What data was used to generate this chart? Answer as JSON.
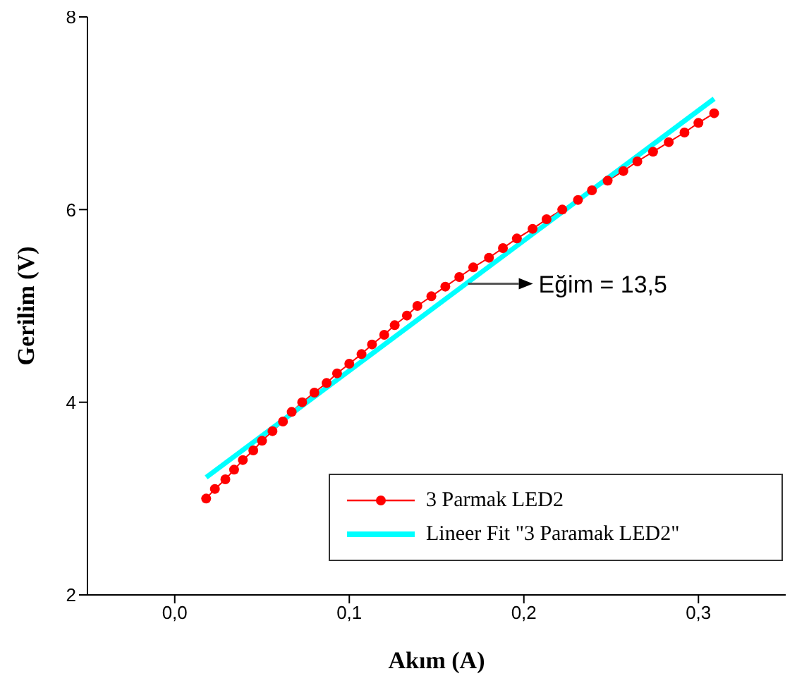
{
  "chart_data": {
    "type": "line",
    "xlabel": "Akım (A)",
    "ylabel": "Gerilim (V)",
    "xlim": [
      -0.05,
      0.35
    ],
    "ylim": [
      2,
      8
    ],
    "xticks": [
      {
        "value": 0,
        "label": "0,0"
      },
      {
        "value": 0.1,
        "label": "0,1"
      },
      {
        "value": 0.2,
        "label": "0,2"
      },
      {
        "value": 0.3,
        "label": "0,3"
      }
    ],
    "yticks": [
      2,
      4,
      6,
      8
    ],
    "legend": "bottom right",
    "annotations": [
      {
        "text": "Eğim = 13,5",
        "x": 0.168,
        "y": 5.23
      }
    ],
    "series": [
      {
        "name": "3 Parmak LED2",
        "color": "#ff0000",
        "marker": "circle",
        "line_style": "solid",
        "x": [
          0.018,
          0.023,
          0.029,
          0.034,
          0.039,
          0.045,
          0.05,
          0.056,
          0.062,
          0.067,
          0.073,
          0.08,
          0.087,
          0.093,
          0.1,
          0.107,
          0.113,
          0.12,
          0.126,
          0.133,
          0.139,
          0.147,
          0.155,
          0.163,
          0.171,
          0.18,
          0.188,
          0.196,
          0.205,
          0.213,
          0.222,
          0.231,
          0.239,
          0.248,
          0.257,
          0.265,
          0.274,
          0.283,
          0.292,
          0.3,
          0.309
        ],
        "values": [
          3.0,
          3.1,
          3.2,
          3.3,
          3.4,
          3.5,
          3.6,
          3.7,
          3.8,
          3.9,
          4.0,
          4.1,
          4.2,
          4.3,
          4.4,
          4.5,
          4.6,
          4.7,
          4.8,
          4.9,
          5.0,
          5.1,
          5.2,
          5.3,
          5.4,
          5.5,
          5.6,
          5.7,
          5.8,
          5.9,
          6.0,
          6.1,
          6.2,
          6.3,
          6.4,
          6.5,
          6.6,
          6.7,
          6.8,
          6.9,
          7.0
        ]
      },
      {
        "name": "Lineer Fit \"3 Paramak LED2\"",
        "type": "line",
        "color": "#00ffff",
        "marker": "none",
        "line_style": "solid",
        "x": [
          0.018,
          0.309
        ],
        "values": [
          3.22,
          7.15
        ]
      }
    ]
  }
}
